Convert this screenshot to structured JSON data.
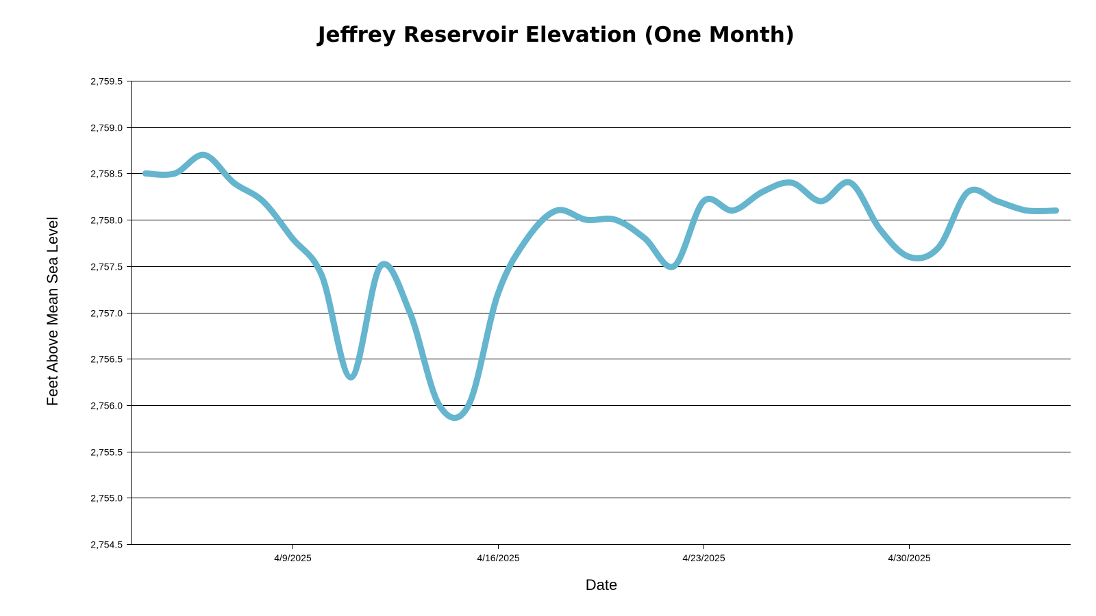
{
  "chart_data": {
    "type": "line",
    "title": "Jeffrey Reservoir Elevation (One Month)",
    "xlabel": "Date",
    "ylabel": "Feet Above Mean Sea Level",
    "ylim": [
      2754.5,
      2759.5
    ],
    "yticks": [
      2754.5,
      2755.0,
      2755.5,
      2756.0,
      2756.5,
      2757.0,
      2757.5,
      2758.0,
      2758.5,
      2759.0,
      2759.5
    ],
    "ytick_labels": [
      "2,754.5",
      "2,755.0",
      "2,755.5",
      "2,756.0",
      "2,756.5",
      "2,757.0",
      "2,757.5",
      "2,758.0",
      "2,758.5",
      "2,759.0",
      "2,759.5"
    ],
    "xlim": [
      "2025-04-03T12:00",
      "2025-05-05T12:00"
    ],
    "xticks": [
      "2025-04-09",
      "2025-04-16",
      "2025-04-23",
      "2025-04-30"
    ],
    "xtick_labels": [
      "4/9/2025",
      "4/16/2025",
      "4/23/2025",
      "4/30/2025"
    ],
    "grid": true,
    "line_color": "#64b5cd",
    "series": [
      {
        "x": [
          "2025-04-04",
          "2025-04-05",
          "2025-04-06",
          "2025-04-07",
          "2025-04-08",
          "2025-04-09",
          "2025-04-10",
          "2025-04-11",
          "2025-04-12",
          "2025-04-13",
          "2025-04-14",
          "2025-04-15",
          "2025-04-16",
          "2025-04-17",
          "2025-04-18",
          "2025-04-19",
          "2025-04-20",
          "2025-04-21",
          "2025-04-22",
          "2025-04-23",
          "2025-04-24",
          "2025-04-25",
          "2025-04-26",
          "2025-04-27",
          "2025-04-28",
          "2025-04-29",
          "2025-04-30",
          "2025-05-01",
          "2025-05-02",
          "2025-05-03",
          "2025-05-04",
          "2025-05-05"
        ],
        "y": [
          2758.5,
          2758.5,
          2758.7,
          2758.4,
          2758.2,
          2757.8,
          2757.4,
          2756.3,
          2757.5,
          2757.0,
          2756.0,
          2756.0,
          2757.2,
          2757.8,
          2758.1,
          2758.0,
          2758.0,
          2757.8,
          2757.5,
          2758.2,
          2758.1,
          2758.3,
          2758.4,
          2758.2,
          2758.4,
          2757.9,
          2757.6,
          2757.7,
          2758.3,
          2758.2,
          2758.1,
          2758.1
        ]
      }
    ]
  }
}
